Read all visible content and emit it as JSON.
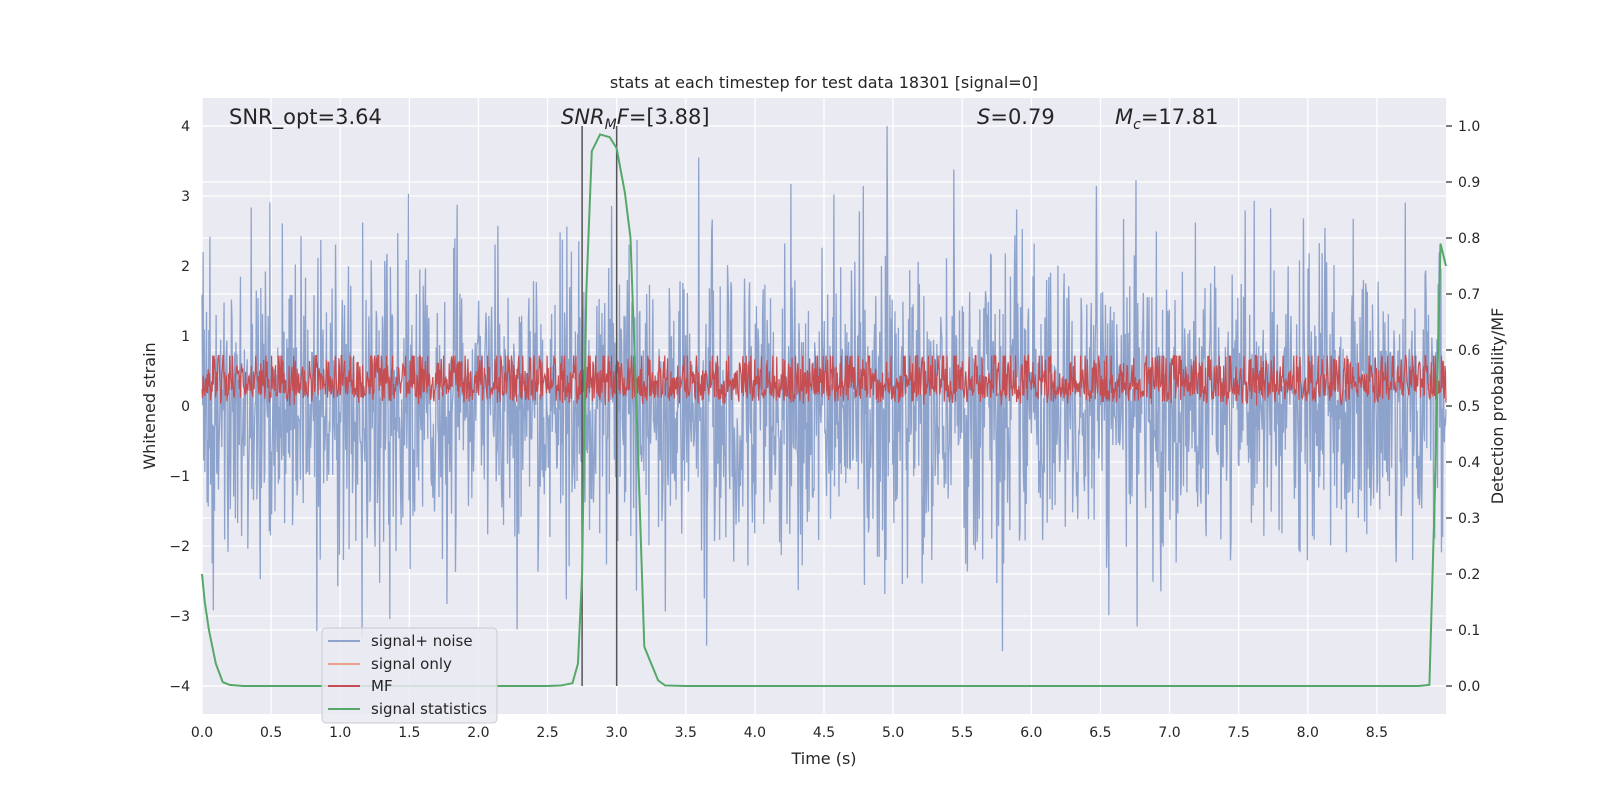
{
  "chart_data": {
    "type": "line",
    "title": "stats at each timestep for test data 18301 [signal=0]",
    "xlabel": "Time (s)",
    "ylabel_left": "Whitened strain",
    "ylabel_right": "Detection probability/MF",
    "xlim": [
      0.0,
      9.0
    ],
    "ylim_left": [
      -4.4,
      4.4
    ],
    "ylim_right": [
      -0.05,
      1.05
    ],
    "xticks": [
      "0.0",
      "0.5",
      "1.0",
      "1.5",
      "2.0",
      "2.5",
      "3.0",
      "3.5",
      "4.0",
      "4.5",
      "5.0",
      "5.5",
      "6.0",
      "6.5",
      "7.0",
      "7.5",
      "8.0",
      "8.5"
    ],
    "yticks_left": [
      "4",
      "3",
      "2",
      "1",
      "0",
      "−1",
      "−2",
      "−3",
      "−4"
    ],
    "yticks_right": [
      "1.0",
      "0.9",
      "0.8",
      "0.7",
      "0.6",
      "0.5",
      "0.4",
      "0.3",
      "0.2",
      "0.1",
      "0.0"
    ],
    "annotations": {
      "snr_opt": "SNR_opt=3.64",
      "snr_mf": "=[3.88]",
      "snr_mf_var": "SNR",
      "snr_mf_sub": "M",
      "snr_mf_f": "F",
      "s_var": "S",
      "s_val": "=0.79",
      "mc_var": "M",
      "mc_sub": "c",
      "mc_val": "=17.81"
    },
    "vlines": [
      2.75,
      3.0
    ],
    "series": [
      {
        "name": "signal+ noise",
        "color": "#8ea3cc",
        "approx_range": [
          -3.9,
          4.0
        ]
      },
      {
        "name": "signal only",
        "color": "#e9a48b",
        "values": []
      },
      {
        "name": "MF",
        "color": "#c44e52",
        "approx_range": [
          0.0,
          1.0
        ]
      },
      {
        "name": "signal statistics",
        "color": "#55a868",
        "x": [
          0.0,
          0.02,
          0.05,
          0.1,
          0.15,
          0.2,
          0.3,
          0.5,
          1.0,
          2.0,
          2.5,
          2.6,
          2.68,
          2.72,
          2.75,
          2.78,
          2.82,
          2.88,
          2.95,
          3.0,
          3.06,
          3.1,
          3.15,
          3.2,
          3.25,
          3.3,
          3.35,
          3.5,
          4.0,
          6.0,
          8.0,
          8.8,
          8.88,
          8.92,
          8.96,
          9.0
        ],
        "y": [
          0.2,
          0.15,
          0.1,
          0.04,
          0.007,
          0.002,
          0.0,
          0.0,
          0.0,
          0.0,
          0.0,
          0.001,
          0.005,
          0.04,
          0.2,
          0.7,
          0.955,
          0.985,
          0.98,
          0.96,
          0.88,
          0.8,
          0.45,
          0.07,
          0.04,
          0.01,
          0.001,
          0.0,
          0.0,
          0.0,
          0.0,
          0.0,
          0.002,
          0.35,
          0.79,
          0.75
        ]
      }
    ],
    "legend": [
      "signal+ noise",
      "signal only",
      "MF",
      "signal statistics"
    ],
    "legend_position": "lower-left"
  }
}
